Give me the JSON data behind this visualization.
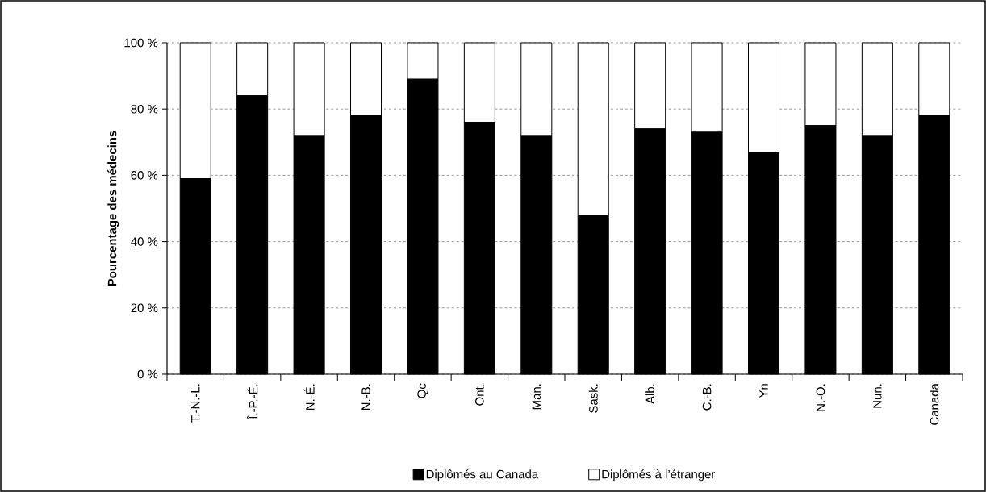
{
  "chart_data": {
    "type": "bar",
    "stacked": true,
    "ylabel": "Pourcentage des médecins",
    "categories": [
      "T.-N.-L.",
      "Î.-P.-É.",
      "N.-É.",
      "N.-B.",
      "Qc",
      "Ont.",
      "Man.",
      "Sask.",
      "Alb.",
      "C.-B.",
      "Yn",
      "N.-O.",
      "Nun.",
      "Canada"
    ],
    "series": [
      {
        "name": "Diplômés au Canada",
        "color": "#000000",
        "values": [
          59,
          84,
          72,
          78,
          89,
          76,
          72,
          48,
          74,
          73,
          67,
          75,
          72,
          78
        ]
      },
      {
        "name": "Diplômés à l’étranger",
        "color": "#ffffff",
        "values": [
          41,
          16,
          28,
          22,
          11,
          24,
          28,
          52,
          26,
          27,
          33,
          25,
          28,
          22
        ]
      }
    ],
    "ylim": [
      0,
      100
    ],
    "yticks": [
      {
        "value": 0,
        "label": "0 %"
      },
      {
        "value": 20,
        "label": "20 %"
      },
      {
        "value": 40,
        "label": "40 %"
      },
      {
        "value": 60,
        "label": "60 %"
      },
      {
        "value": 80,
        "label": "80 %"
      },
      {
        "value": 100,
        "label": "100 %"
      }
    ],
    "grid": "y",
    "legend": "bottom"
  }
}
